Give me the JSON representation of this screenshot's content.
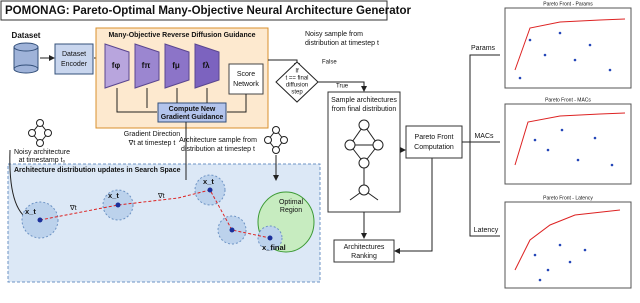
{
  "header": {
    "title": "POMONAG: Pareto-Optimal Many-Objective Neural Architecture Generator"
  },
  "inputs": {
    "dataset": "Dataset",
    "encoder": [
      "Dataset",
      "Encoder"
    ]
  },
  "guidance": {
    "title": "Many-Objective Reverse Diffusion Guidance",
    "predictors": [
      "fφ",
      "fπ",
      "fμ",
      "fλ"
    ],
    "score_network": [
      "Score",
      "Network"
    ],
    "compute": [
      "Compute New",
      "Gradient Guidance"
    ]
  },
  "loop": {
    "noisy_sample": [
      "Noisy sample from",
      "distribution at timestep t"
    ],
    "condition": [
      "If",
      "t == final",
      "diffusion",
      "step"
    ],
    "false": "False",
    "true": "True"
  },
  "sampling": {
    "sample": [
      "Sample architectures",
      "from final distribution"
    ],
    "ranking": [
      "Architectures",
      "Ranking"
    ],
    "pareto": [
      "Pareto Front",
      "Computation"
    ]
  },
  "objectives": [
    "Params",
    "MACs",
    "Latency"
  ],
  "plots": [
    "Pareto Front - Params",
    "Pareto Front - MACs",
    "Pareto Front - Latency"
  ],
  "search": {
    "title": "Architecture distribution updates in Search Space",
    "noisy_arch": [
      "Noisy architecture",
      "at timestamp t₀"
    ],
    "gradient": [
      "Gradient Direction",
      "∇t at timestep t"
    ],
    "arch_sample": [
      "Architecture sample from",
      "distribution at timestep t"
    ],
    "optimal": [
      "Optimal",
      "Region"
    ],
    "points": [
      "x_t",
      "∇t",
      "x_t",
      "∇t",
      "x_t",
      "x_final"
    ]
  }
}
